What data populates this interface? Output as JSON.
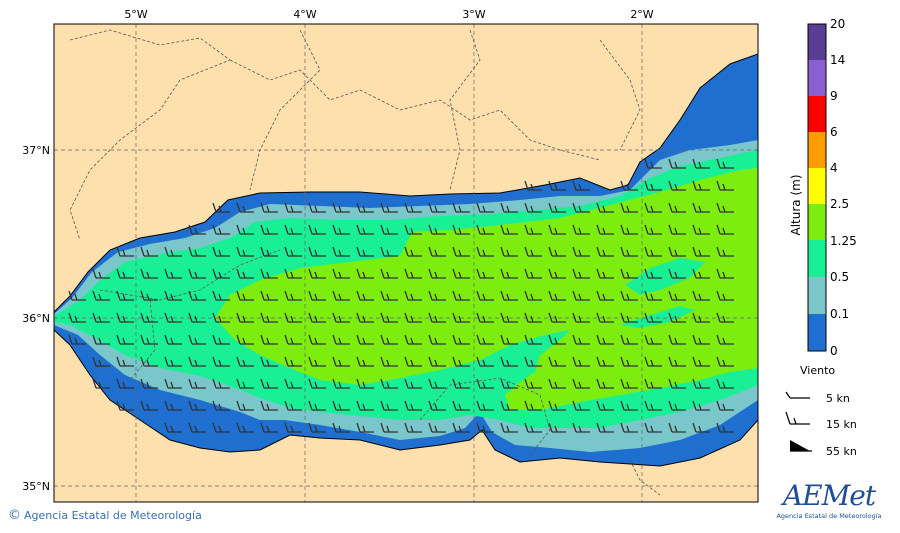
{
  "map": {
    "lon_labels": [
      "5°W",
      "4°W",
      "3°W",
      "2°W"
    ],
    "lat_labels": [
      "37°N",
      "36°N",
      "35°N"
    ],
    "colors": {
      "land": "#fde0ae",
      "level_0": "#1f6fd0",
      "level_01": "#79c7cb",
      "level_05": "#19f095",
      "level_125": "#7ded10"
    }
  },
  "colorbar": {
    "title": "Altura (m)",
    "tick_labels": [
      "20",
      "14",
      "9",
      "6",
      "4",
      "2.5",
      "1.25",
      "0.5",
      "0.1",
      "0"
    ],
    "colors": [
      "#5a3d94",
      "#8a5fd0",
      "#ff0000",
      "#ff9c00",
      "#ffff00",
      "#7ded10",
      "#19f095",
      "#79c7cb",
      "#1f6fd0"
    ]
  },
  "wind_legend": {
    "title": "Viento",
    "items": [
      {
        "label": "5 kn"
      },
      {
        "label": "15 kn"
      },
      {
        "label": "55 kn"
      }
    ]
  },
  "footer": {
    "copyright_symbol": "©",
    "copyright_text": "Agencia Estatal de Meteorología",
    "logo_text": "AEMet",
    "logo_subtext": "Agencia Estatal de Meteorología"
  }
}
